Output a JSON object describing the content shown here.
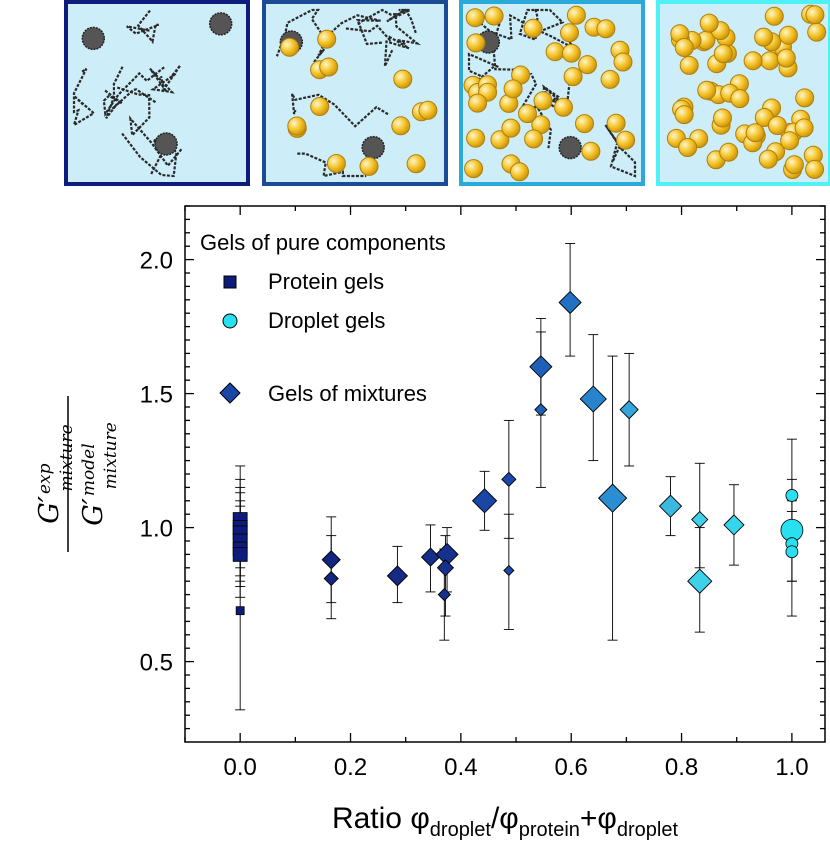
{
  "chart_data": {
    "type": "scatter",
    "xlabel": {
      "main": "Ratio ",
      "phi": "φ",
      "droplet": "droplet",
      "slash": "/",
      "protein": "protein",
      "plus": "+"
    },
    "ylabel": {
      "prime": "′",
      "G": "G",
      "exp": "exp",
      "mixture": "mixture",
      "model": "model"
    },
    "xlim": [
      -0.1,
      1.06
    ],
    "ylim": [
      0.2,
      2.2
    ],
    "xticks": [
      "0.0",
      "0.2",
      "0.4",
      "0.6",
      "0.8",
      "1.0"
    ],
    "yticks": [
      "0.5",
      "1.0",
      "1.5",
      "2.0"
    ],
    "legend": {
      "position": "top-left",
      "header": "Gels of pure components",
      "items": [
        "Protein gels",
        "Droplet gels",
        "Gels of mixtures"
      ]
    },
    "colors": {
      "protein": "#0d1b7a",
      "droplet": "#29e0f0",
      "mixture": "#1b4fa8",
      "stroke": "#000000",
      "panel_bg": "#cdeef8",
      "droplet_fill": "#f2c12e"
    },
    "series": [
      {
        "name": "Protein gels",
        "marker": "square",
        "points": [
          {
            "x": 0.0,
            "y": 1.03,
            "lo": 0.88,
            "hi": 1.18,
            "size": 7
          },
          {
            "x": 0.0,
            "y": 1.0,
            "lo": 0.85,
            "hi": 1.15,
            "size": 7
          },
          {
            "x": 0.0,
            "y": 0.98,
            "lo": 0.82,
            "hi": 1.13,
            "size": 7
          },
          {
            "x": 0.0,
            "y": 0.95,
            "lo": 0.8,
            "hi": 1.1,
            "size": 7
          },
          {
            "x": 0.0,
            "y": 0.92,
            "lo": 0.78,
            "hi": 1.08,
            "size": 7
          },
          {
            "x": 0.0,
            "y": 0.9,
            "lo": 0.74,
            "hi": 1.05,
            "size": 7
          },
          {
            "x": 0.0,
            "y": 0.69,
            "lo": 0.32,
            "hi": 1.23,
            "size": 4
          }
        ]
      },
      {
        "name": "Droplet gels",
        "marker": "circle",
        "points": [
          {
            "x": 1.0,
            "y": 1.12,
            "lo": 0.95,
            "hi": 1.33,
            "size": 6
          },
          {
            "x": 1.0,
            "y": 0.99,
            "lo": 0.8,
            "hi": 1.18,
            "size": 11
          },
          {
            "x": 1.0,
            "y": 0.94,
            "lo": 0.67,
            "hi": 1.1,
            "size": 6
          },
          {
            "x": 1.0,
            "y": 0.91,
            "lo": 0.8,
            "hi": 1.06,
            "size": 6
          }
        ]
      },
      {
        "name": "Gels of mixtures",
        "marker": "diamond",
        "points": [
          {
            "x": 0.165,
            "y": 0.88,
            "lo": 0.72,
            "hi": 1.04,
            "size": 9,
            "color": "#12257f"
          },
          {
            "x": 0.165,
            "y": 0.81,
            "lo": 0.66,
            "hi": 0.97,
            "size": 7,
            "color": "#12257f"
          },
          {
            "x": 0.285,
            "y": 0.82,
            "lo": 0.72,
            "hi": 0.93,
            "size": 10,
            "color": "#142a85"
          },
          {
            "x": 0.345,
            "y": 0.89,
            "lo": 0.76,
            "hi": 1.01,
            "size": 9,
            "color": "#152e8a"
          },
          {
            "x": 0.375,
            "y": 0.9,
            "lo": 0.76,
            "hi": 1.0,
            "size": 11,
            "color": "#16308d"
          },
          {
            "x": 0.372,
            "y": 0.85,
            "lo": 0.67,
            "hi": 0.97,
            "size": 8,
            "color": "#16308d"
          },
          {
            "x": 0.37,
            "y": 0.75,
            "lo": 0.58,
            "hi": 0.92,
            "size": 6,
            "color": "#16308d"
          },
          {
            "x": 0.443,
            "y": 1.1,
            "lo": 0.99,
            "hi": 1.21,
            "size": 12,
            "color": "#1a46a6"
          },
          {
            "x": 0.487,
            "y": 1.18,
            "lo": 0.96,
            "hi": 1.4,
            "size": 7,
            "color": "#1a48aa"
          },
          {
            "x": 0.487,
            "y": 0.84,
            "lo": 0.62,
            "hi": 1.05,
            "size": 5,
            "color": "#1a48aa"
          },
          {
            "x": 0.545,
            "y": 1.6,
            "lo": 1.42,
            "hi": 1.78,
            "size": 11,
            "color": "#1e60b8"
          },
          {
            "x": 0.545,
            "y": 1.44,
            "lo": 1.15,
            "hi": 1.73,
            "size": 6,
            "color": "#1e60b8"
          },
          {
            "x": 0.598,
            "y": 1.84,
            "lo": 1.64,
            "hi": 2.06,
            "size": 11,
            "color": "#2170c2"
          },
          {
            "x": 0.64,
            "y": 1.48,
            "lo": 1.25,
            "hi": 1.72,
            "size": 13,
            "color": "#2784cc"
          },
          {
            "x": 0.675,
            "y": 1.11,
            "lo": 0.58,
            "hi": 1.64,
            "size": 14,
            "color": "#2a8ed2"
          },
          {
            "x": 0.705,
            "y": 1.44,
            "lo": 1.23,
            "hi": 1.65,
            "size": 9,
            "color": "#34a6da"
          },
          {
            "x": 0.78,
            "y": 1.08,
            "lo": 0.97,
            "hi": 1.19,
            "size": 11,
            "color": "#3ab8df"
          },
          {
            "x": 0.833,
            "y": 1.03,
            "lo": 0.85,
            "hi": 1.24,
            "size": 8,
            "color": "#3fd0ea"
          },
          {
            "x": 0.833,
            "y": 0.8,
            "lo": 0.61,
            "hi": 1.0,
            "size": 12,
            "color": "#3fd0ea"
          },
          {
            "x": 0.895,
            "y": 1.01,
            "lo": 0.86,
            "hi": 1.16,
            "size": 10,
            "color": "#35d6ec"
          }
        ]
      }
    ]
  },
  "panels": [
    {
      "border": "#0d1b7a",
      "droplets": 0
    },
    {
      "border": "#1b4b94",
      "droplets": 14
    },
    {
      "border": "#2ba9d8",
      "droplets": 38
    },
    {
      "border": "#4ff0f6",
      "droplets": 60
    }
  ]
}
